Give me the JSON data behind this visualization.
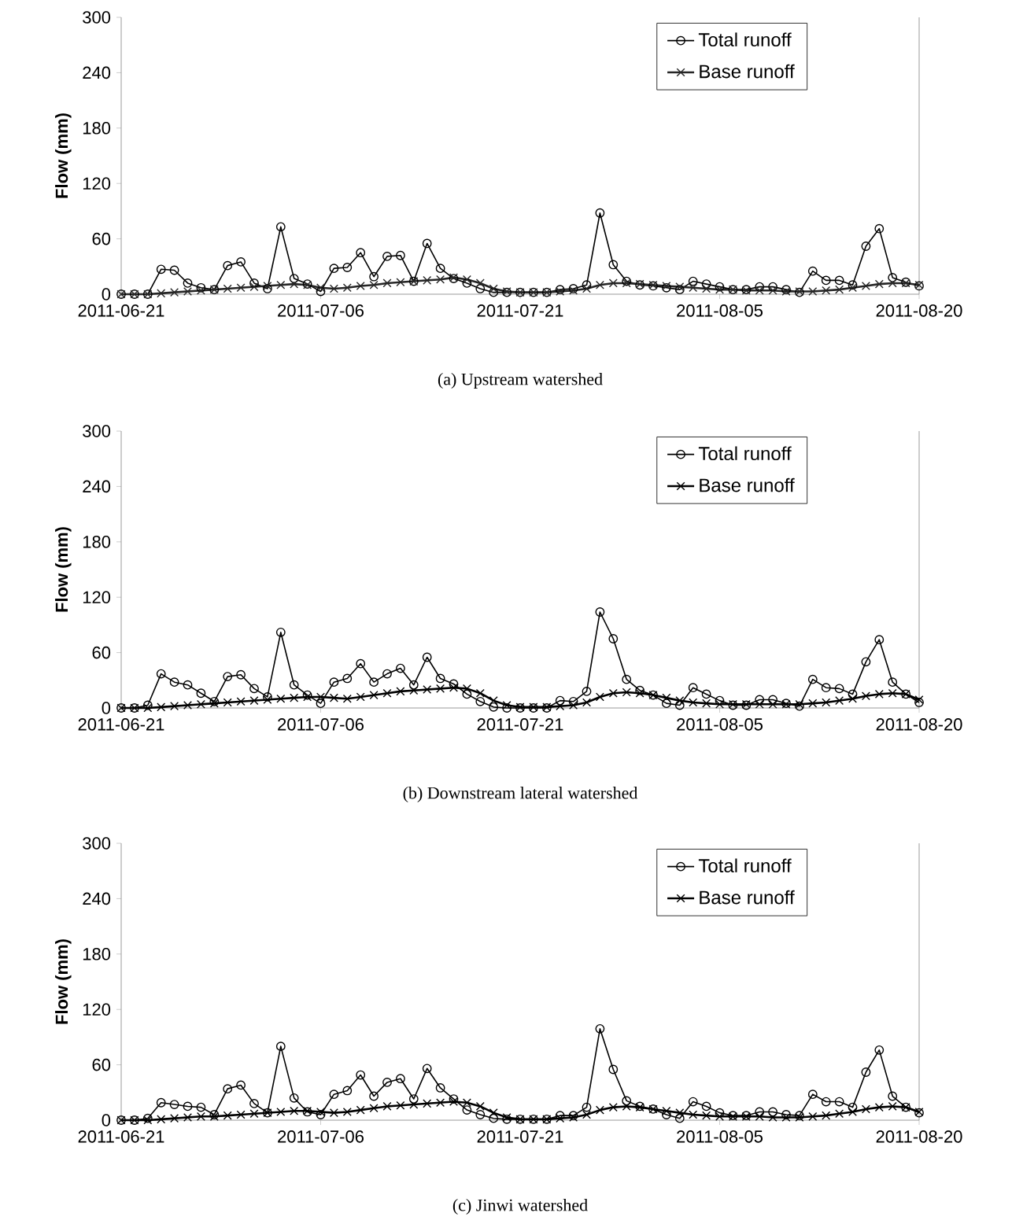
{
  "chart_data": [
    {
      "type": "line",
      "ylabel": "Flow (mm)",
      "annotations": [
        "(a) Upstream watershed"
      ],
      "legend": "top right",
      "x": [
        "2011-06-21",
        "2011-06-22",
        "2011-06-23",
        "2011-06-24",
        "2011-06-25",
        "2011-06-26",
        "2011-06-27",
        "2011-06-28",
        "2011-06-29",
        "2011-06-30",
        "2011-07-01",
        "2011-07-02",
        "2011-07-03",
        "2011-07-04",
        "2011-07-05",
        "2011-07-06",
        "2011-07-07",
        "2011-07-08",
        "2011-07-09",
        "2011-07-10",
        "2011-07-11",
        "2011-07-12",
        "2011-07-13",
        "2011-07-14",
        "2011-07-15",
        "2011-07-16",
        "2011-07-17",
        "2011-07-18",
        "2011-07-19",
        "2011-07-20",
        "2011-07-21",
        "2011-07-22",
        "2011-07-23",
        "2011-07-24",
        "2011-07-25",
        "2011-07-26",
        "2011-07-27",
        "2011-07-28",
        "2011-07-29",
        "2011-07-30",
        "2011-07-31",
        "2011-08-01",
        "2011-08-02",
        "2011-08-03",
        "2011-08-04",
        "2011-08-05",
        "2011-08-06",
        "2011-08-07",
        "2011-08-08",
        "2011-08-09",
        "2011-08-10",
        "2011-08-11",
        "2011-08-12",
        "2011-08-13",
        "2011-08-14",
        "2011-08-15",
        "2011-08-16",
        "2011-08-17",
        "2011-08-18",
        "2011-08-19",
        "2011-08-20"
      ],
      "xlim": [
        "2011-06-21",
        "2011-08-20"
      ],
      "xticks": [
        "2011-06-21",
        "2011-07-06",
        "2011-07-21",
        "2011-08-05",
        "2011-08-20"
      ],
      "ylim": [
        0,
        300
      ],
      "yticks": [
        0,
        60,
        120,
        180,
        240,
        300
      ],
      "series": [
        {
          "name": "Total runoff",
          "color": "#000000",
          "marker": "circle",
          "values": [
            0,
            0,
            0,
            27,
            26,
            12,
            7,
            5,
            31,
            35,
            12,
            6,
            73,
            17,
            11,
            3,
            28,
            29,
            45,
            19,
            41,
            42,
            14,
            55,
            28,
            17,
            12,
            6,
            2,
            2,
            2,
            2,
            2,
            5,
            6,
            10,
            88,
            32,
            14,
            10,
            9,
            7,
            5,
            14,
            11,
            8,
            5,
            5,
            8,
            8,
            5,
            2,
            25,
            15,
            15,
            10,
            52,
            71,
            18,
            13,
            9
          ]
        },
        {
          "name": "Base runoff",
          "color": "#262626",
          "marker": "cross",
          "values": [
            0,
            0,
            0,
            1,
            2,
            3,
            4,
            5,
            6,
            7,
            8,
            9,
            10,
            11,
            10,
            7,
            6,
            7,
            9,
            10,
            12,
            13,
            14,
            15,
            16,
            18,
            16,
            12,
            6,
            3,
            2,
            2,
            2,
            3,
            4,
            6,
            10,
            12,
            12,
            11,
            10,
            9,
            8,
            7,
            6,
            5,
            5,
            4,
            4,
            4,
            3,
            3,
            3,
            4,
            5,
            7,
            9,
            11,
            12,
            12,
            10
          ]
        }
      ]
    },
    {
      "type": "line",
      "ylabel": "Flow (mm)",
      "annotations": [
        "(b) Downstream lateral watershed"
      ],
      "legend": "top right",
      "x": [
        "2011-06-21",
        "2011-06-22",
        "2011-06-23",
        "2011-06-24",
        "2011-06-25",
        "2011-06-26",
        "2011-06-27",
        "2011-06-28",
        "2011-06-29",
        "2011-06-30",
        "2011-07-01",
        "2011-07-02",
        "2011-07-03",
        "2011-07-04",
        "2011-07-05",
        "2011-07-06",
        "2011-07-07",
        "2011-07-08",
        "2011-07-09",
        "2011-07-10",
        "2011-07-11",
        "2011-07-12",
        "2011-07-13",
        "2011-07-14",
        "2011-07-15",
        "2011-07-16",
        "2011-07-17",
        "2011-07-18",
        "2011-07-19",
        "2011-07-20",
        "2011-07-21",
        "2011-07-22",
        "2011-07-23",
        "2011-07-24",
        "2011-07-25",
        "2011-07-26",
        "2011-07-27",
        "2011-07-28",
        "2011-07-29",
        "2011-07-30",
        "2011-07-31",
        "2011-08-01",
        "2011-08-02",
        "2011-08-03",
        "2011-08-04",
        "2011-08-05",
        "2011-08-06",
        "2011-08-07",
        "2011-08-08",
        "2011-08-09",
        "2011-08-10",
        "2011-08-11",
        "2011-08-12",
        "2011-08-13",
        "2011-08-14",
        "2011-08-15",
        "2011-08-16",
        "2011-08-17",
        "2011-08-18",
        "2011-08-19",
        "2011-08-20"
      ],
      "xlim": [
        "2011-06-21",
        "2011-08-20"
      ],
      "xticks": [
        "2011-06-21",
        "2011-07-06",
        "2011-07-21",
        "2011-08-05",
        "2011-08-20"
      ],
      "ylim": [
        0,
        300
      ],
      "yticks": [
        0,
        60,
        120,
        180,
        240,
        300
      ],
      "series": [
        {
          "name": "Total runoff",
          "color": "#000000",
          "marker": "circle",
          "values": [
            0,
            0,
            3,
            37,
            28,
            25,
            16,
            7,
            34,
            36,
            21,
            12,
            82,
            25,
            14,
            5,
            28,
            32,
            48,
            28,
            37,
            43,
            25,
            55,
            32,
            26,
            15,
            7,
            1,
            0,
            0,
            0,
            0,
            8,
            7,
            18,
            104,
            75,
            31,
            19,
            14,
            5,
            3,
            22,
            15,
            8,
            3,
            3,
            9,
            9,
            5,
            2,
            31,
            22,
            21,
            15,
            50,
            74,
            28,
            15,
            6
          ]
        },
        {
          "name": "Base runoff",
          "color": "#000000",
          "marker": "cross",
          "values": [
            0,
            0,
            0,
            1,
            2,
            3,
            4,
            5,
            6,
            7,
            8,
            9,
            10,
            11,
            12,
            12,
            11,
            10,
            12,
            14,
            16,
            18,
            19,
            20,
            21,
            22,
            21,
            16,
            8,
            3,
            1,
            1,
            1,
            2,
            3,
            6,
            12,
            16,
            17,
            16,
            14,
            11,
            8,
            6,
            5,
            4,
            4,
            4,
            4,
            4,
            4,
            4,
            5,
            6,
            8,
            10,
            13,
            15,
            16,
            15,
            9
          ]
        }
      ]
    },
    {
      "type": "line",
      "ylabel": "Flow (mm)",
      "annotations": [
        "(c) Jinwi watershed"
      ],
      "legend": "top right",
      "x": [
        "2011-06-21",
        "2011-06-22",
        "2011-06-23",
        "2011-06-24",
        "2011-06-25",
        "2011-06-26",
        "2011-06-27",
        "2011-06-28",
        "2011-06-29",
        "2011-06-30",
        "2011-07-01",
        "2011-07-02",
        "2011-07-03",
        "2011-07-04",
        "2011-07-05",
        "2011-07-06",
        "2011-07-07",
        "2011-07-08",
        "2011-07-09",
        "2011-07-10",
        "2011-07-11",
        "2011-07-12",
        "2011-07-13",
        "2011-07-14",
        "2011-07-15",
        "2011-07-16",
        "2011-07-17",
        "2011-07-18",
        "2011-07-19",
        "2011-07-20",
        "2011-07-21",
        "2011-07-22",
        "2011-07-23",
        "2011-07-24",
        "2011-07-25",
        "2011-07-26",
        "2011-07-27",
        "2011-07-28",
        "2011-07-29",
        "2011-07-30",
        "2011-07-31",
        "2011-08-01",
        "2011-08-02",
        "2011-08-03",
        "2011-08-04",
        "2011-08-05",
        "2011-08-06",
        "2011-08-07",
        "2011-08-08",
        "2011-08-09",
        "2011-08-10",
        "2011-08-11",
        "2011-08-12",
        "2011-08-13",
        "2011-08-14",
        "2011-08-15",
        "2011-08-16",
        "2011-08-17",
        "2011-08-18",
        "2011-08-19",
        "2011-08-20"
      ],
      "xlim": [
        "2011-06-21",
        "2011-08-20"
      ],
      "xticks": [
        "2011-06-21",
        "2011-07-06",
        "2011-07-21",
        "2011-08-05",
        "2011-08-20"
      ],
      "ylim": [
        0,
        300
      ],
      "yticks": [
        0,
        60,
        120,
        180,
        240,
        300
      ],
      "series": [
        {
          "name": "Total runoff",
          "color": "#000000",
          "marker": "circle",
          "values": [
            0,
            0,
            2,
            19,
            17,
            15,
            14,
            6,
            34,
            38,
            18,
            8,
            80,
            24,
            9,
            6,
            28,
            32,
            49,
            26,
            41,
            45,
            23,
            56,
            35,
            23,
            11,
            6,
            2,
            1,
            1,
            1,
            1,
            5,
            5,
            14,
            99,
            55,
            21,
            15,
            12,
            6,
            2,
            20,
            15,
            8,
            5,
            5,
            9,
            9,
            6,
            5,
            28,
            20,
            20,
            14,
            52,
            76,
            26,
            14,
            8
          ]
        },
        {
          "name": "Base runoff",
          "color": "#000000",
          "marker": "cross",
          "values": [
            0,
            0,
            0,
            1,
            2,
            3,
            4,
            4,
            5,
            6,
            7,
            8,
            9,
            10,
            10,
            9,
            8,
            9,
            11,
            13,
            15,
            16,
            17,
            18,
            19,
            20,
            19,
            15,
            8,
            3,
            1,
            1,
            1,
            2,
            3,
            6,
            11,
            14,
            15,
            14,
            12,
            10,
            8,
            6,
            5,
            4,
            4,
            4,
            4,
            3,
            3,
            3,
            4,
            5,
            7,
            9,
            12,
            14,
            15,
            14,
            9
          ]
        }
      ]
    }
  ]
}
